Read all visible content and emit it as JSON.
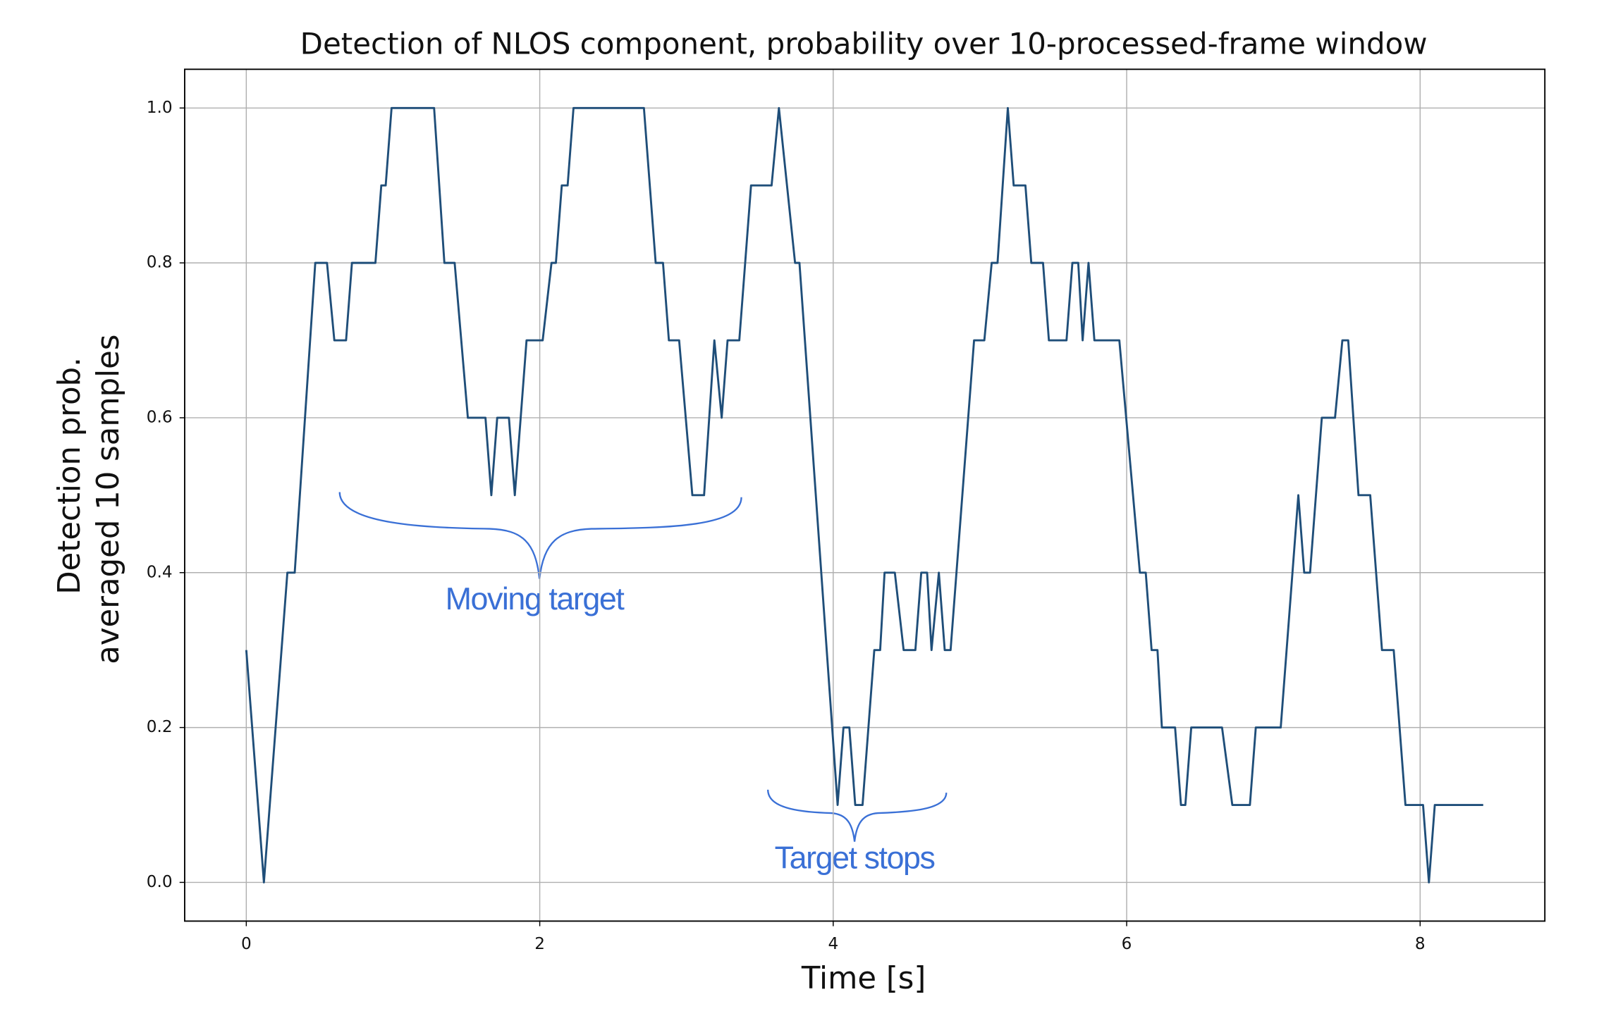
{
  "chart_data": {
    "type": "line",
    "title": "Detection of NLOS component, probability over 10-processed-frame window",
    "xlabel": "Time [s]",
    "ylabel": [
      "Detection prob.",
      "averaged 10 samples"
    ],
    "x": [
      0,
      0.12,
      0.28,
      0.33,
      0.47,
      0.55,
      0.6,
      0.68,
      0.72,
      0.88,
      0.92,
      0.95,
      0.99,
      1.28,
      1.35,
      1.42,
      1.51,
      1.63,
      1.67,
      1.71,
      1.79,
      1.83,
      1.91,
      2.02,
      2.08,
      2.11,
      2.15,
      2.19,
      2.23,
      2.71,
      2.79,
      2.84,
      2.88,
      2.95,
      3.04,
      3.12,
      3.19,
      3.24,
      3.28,
      3.36,
      3.44,
      3.58,
      3.63,
      3.74,
      3.77,
      4.03,
      4.07,
      4.11,
      4.15,
      4.2,
      4.28,
      4.32,
      4.35,
      4.42,
      4.48,
      4.56,
      4.6,
      4.64,
      4.67,
      4.72,
      4.76,
      4.8,
      4.96,
      5.03,
      5.08,
      5.12,
      5.19,
      5.23,
      5.31,
      5.35,
      5.43,
      5.47,
      5.59,
      5.63,
      5.67,
      5.7,
      5.74,
      5.78,
      5.95,
      6.09,
      6.13,
      6.17,
      6.21,
      6.24,
      6.33,
      6.37,
      6.4,
      6.44,
      6.65,
      6.72,
      6.84,
      6.88,
      7.05,
      7.17,
      7.21,
      7.25,
      7.33,
      7.42,
      7.47,
      7.51,
      7.58,
      7.66,
      7.74,
      7.82,
      7.9,
      8.02,
      8.06,
      8.1,
      8.43
    ],
    "values": [
      0.3,
      0.0,
      0.4,
      0.4,
      0.8,
      0.8,
      0.7,
      0.7,
      0.8,
      0.8,
      0.9,
      0.9,
      1.0,
      1.0,
      0.8,
      0.8,
      0.6,
      0.6,
      0.5,
      0.6,
      0.6,
      0.5,
      0.7,
      0.7,
      0.8,
      0.8,
      0.9,
      0.9,
      1.0,
      1.0,
      0.8,
      0.8,
      0.7,
      0.7,
      0.5,
      0.5,
      0.7,
      0.6,
      0.7,
      0.7,
      0.9,
      0.9,
      1.0,
      0.8,
      0.8,
      0.1,
      0.2,
      0.2,
      0.1,
      0.1,
      0.3,
      0.3,
      0.4,
      0.4,
      0.3,
      0.3,
      0.4,
      0.4,
      0.3,
      0.4,
      0.3,
      0.3,
      0.7,
      0.7,
      0.8,
      0.8,
      1.0,
      0.9,
      0.9,
      0.8,
      0.8,
      0.7,
      0.7,
      0.8,
      0.8,
      0.7,
      0.8,
      0.7,
      0.7,
      0.4,
      0.4,
      0.3,
      0.3,
      0.2,
      0.2,
      0.1,
      0.1,
      0.2,
      0.2,
      0.1,
      0.1,
      0.2,
      0.2,
      0.5,
      0.4,
      0.4,
      0.6,
      0.6,
      0.7,
      0.7,
      0.5,
      0.5,
      0.3,
      0.3,
      0.1,
      0.1,
      0.0,
      0.1,
      0.1
    ],
    "color": "#1f4e79",
    "xlim": [
      -0.42,
      8.85
    ],
    "xticks": [
      0,
      2,
      4,
      6,
      8
    ],
    "ylim": [
      -0.05,
      1.05
    ],
    "yticks": [
      {
        "value": 0,
        "label": "0.0"
      },
      0.2,
      0.4,
      0.6,
      0.8,
      {
        "value": 1,
        "label": "1.0"
      }
    ],
    "grid": true,
    "annotations": [
      "Moving target",
      "Target stops"
    ]
  }
}
